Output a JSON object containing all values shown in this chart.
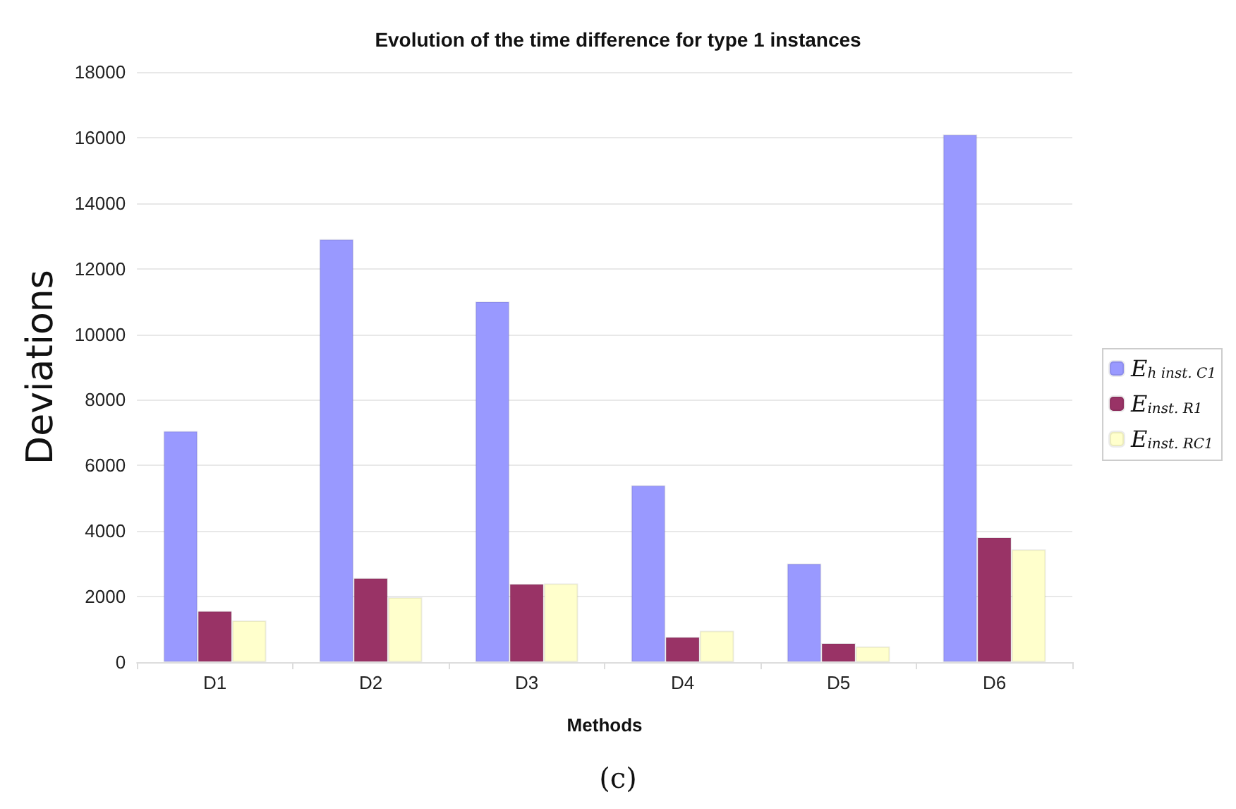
{
  "chart_data": {
    "type": "bar",
    "title": "Evolution of the time difference for type 1 instances",
    "xlabel": "Methods",
    "ylabel": "Deviations",
    "annotations": [
      "(c)"
    ],
    "categories": [
      "D1",
      "D2",
      "D3",
      "D4",
      "D5",
      "D6"
    ],
    "series": [
      {
        "name": "E$_{h inst. C1}$",
        "color": "#9999ff",
        "values": [
          7050,
          12900,
          11000,
          5400,
          3010,
          16100
        ]
      },
      {
        "name": "E$_{inst. R1}$",
        "color": "#993366",
        "values": [
          1560,
          2570,
          2390,
          770,
          580,
          3810
        ]
      },
      {
        "name": "E$_{inst. RC1}$",
        "color": "#ffffcc",
        "values": [
          1270,
          1980,
          2400,
          960,
          480,
          3440
        ]
      }
    ],
    "ylim": [
      0,
      18000
    ],
    "yticks": [
      0,
      2000,
      4000,
      6000,
      8000,
      10000,
      12000,
      14000,
      16000,
      18000
    ],
    "grid": "y",
    "legend": "right"
  }
}
